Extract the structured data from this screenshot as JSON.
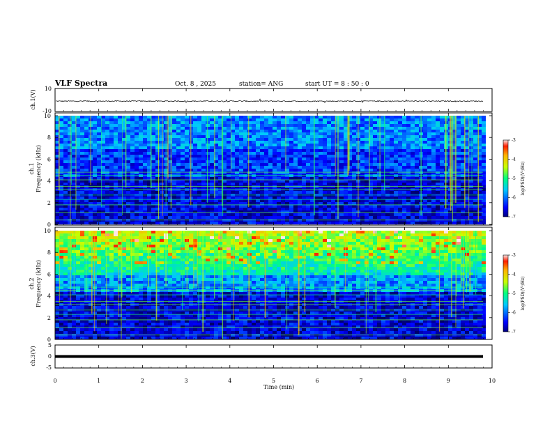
{
  "header": {
    "title": "VLF Spectra",
    "date": "Oct. 8 , 2025",
    "station": "station= ANG",
    "start_ut": "start UT = 8 : 50 : 0"
  },
  "chart_data": [
    {
      "type": "line",
      "panel": "ch.1 waveform",
      "ylabel": "ch.1(V)",
      "ylim": [
        -10,
        10
      ],
      "y_tick_labels": [
        "10",
        "-10"
      ],
      "xlim": [
        0,
        10
      ],
      "level": -1,
      "noise": "small fluctuations around -1 V with occasional spikes"
    },
    {
      "type": "heatmap",
      "panel": "ch.1 spectrogram",
      "ylabel": "ch.1 Frequency (kHz)",
      "ylim": [
        0,
        10
      ],
      "y_ticks": [
        0,
        2,
        4,
        6,
        8,
        10
      ],
      "xlim": [
        0,
        10
      ],
      "colorbar": {
        "label": "log(PSD)(V²/Hz)",
        "min": -7,
        "max": -3,
        "ticks": [
          "-3",
          "-4",
          "-5",
          "-6",
          "-7"
        ]
      },
      "features": "dark blue background, narrowband lines between 0-5 kHz, vertical broadband sferics"
    },
    {
      "type": "heatmap",
      "panel": "ch.2 spectrogram",
      "ylabel": "ch.2 Frequency (kHz)",
      "ylim": [
        0,
        10
      ],
      "y_ticks": [
        0,
        2,
        4,
        6,
        8,
        10
      ],
      "xlim": [
        0,
        10
      ],
      "colorbar": {
        "label": "log(PSD)(V²/Hz)",
        "min": -7,
        "max": -3,
        "ticks": [
          "-3",
          "-4",
          "-5",
          "-6",
          "-7"
        ]
      },
      "features": "strong green-yellow-red emission 6-10 kHz, blue below, narrowband lines"
    },
    {
      "type": "line",
      "panel": "ch.3 waveform",
      "ylabel": "ch.3(V)",
      "ylim": [
        -5,
        5
      ],
      "y_tick_labels": [
        "5",
        "0",
        "-5"
      ],
      "xlim": [
        0,
        10
      ],
      "level": 0
    }
  ],
  "x_axis": {
    "label": "Time (min)",
    "ticks": [
      0,
      1,
      2,
      3,
      4,
      5,
      6,
      7,
      8,
      9,
      10
    ],
    "tick_labels": [
      "0",
      "1",
      "2",
      "3",
      "4",
      "5",
      "6",
      "7",
      "8",
      "9",
      "10"
    ]
  }
}
